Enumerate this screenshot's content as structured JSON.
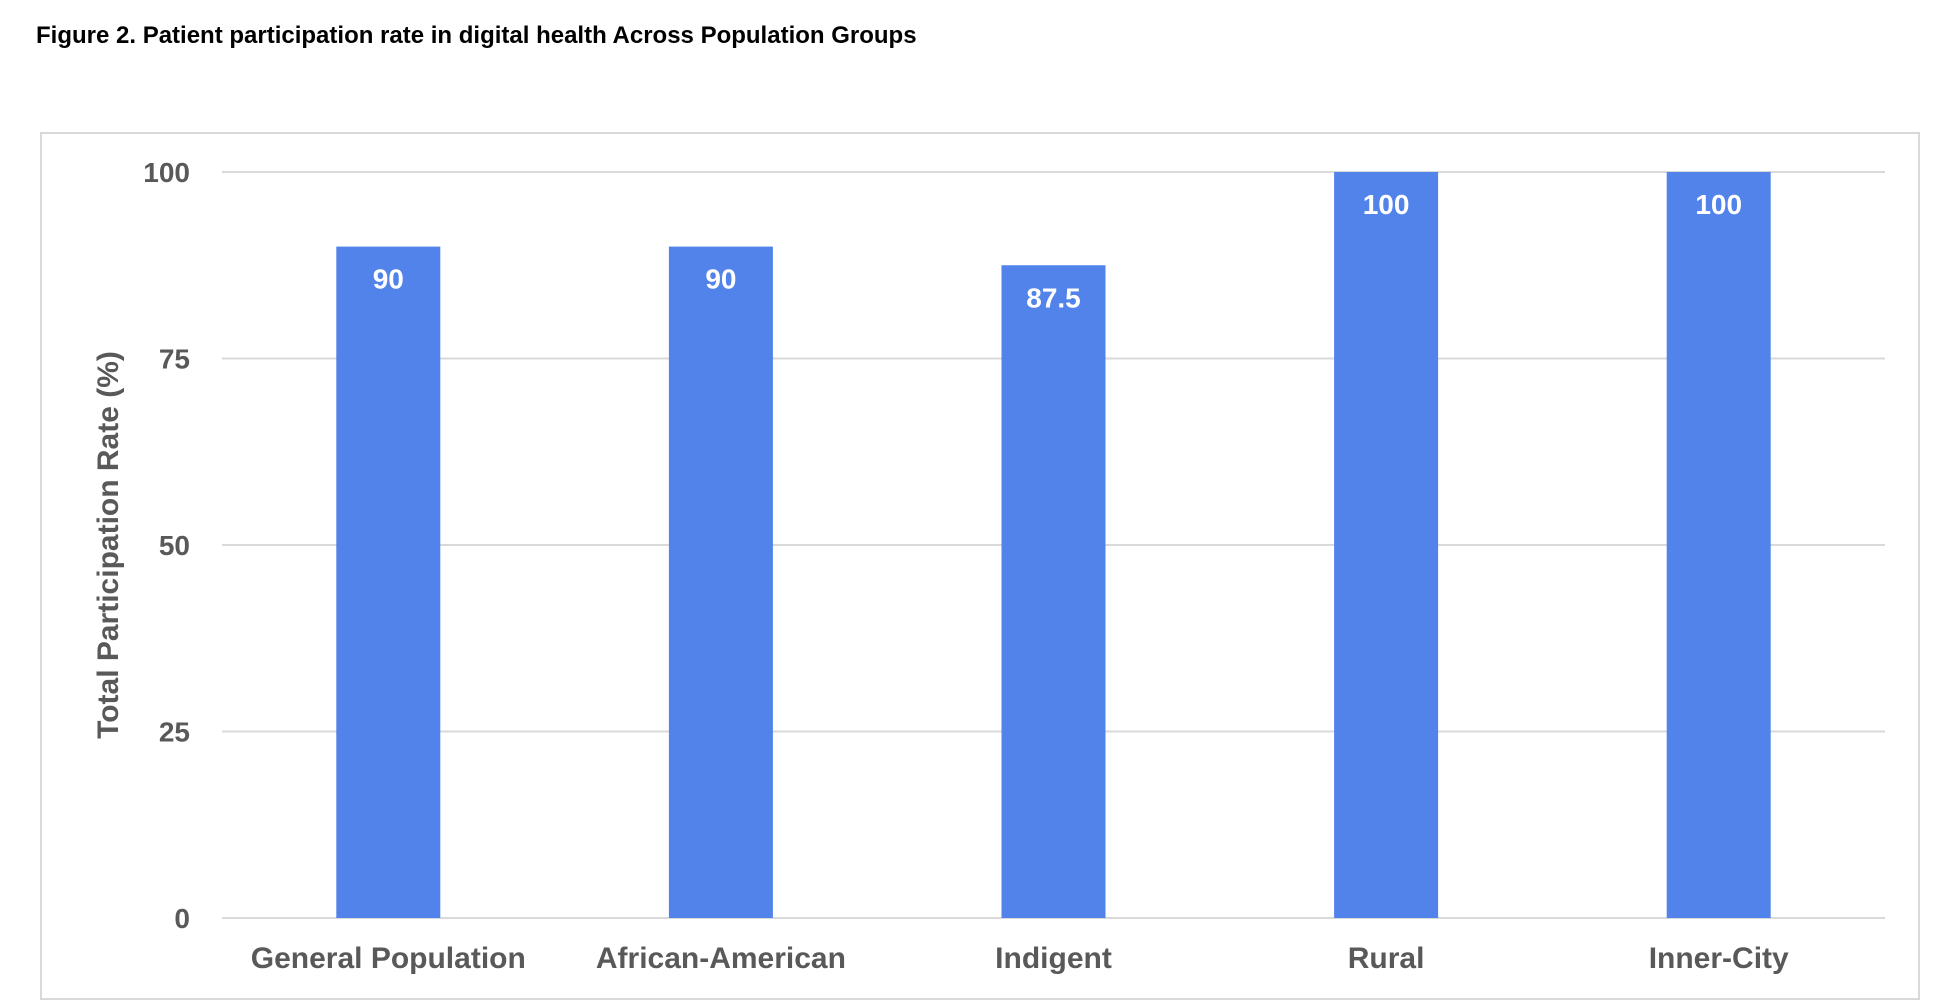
{
  "figure_title": "Figure 2. Patient participation rate in digital health Across Population Groups",
  "colors": {
    "bar": "#5183EB",
    "grid": "#D9D9D9",
    "axis_text": "#595959",
    "data_label": "#FFFFFF"
  },
  "chart_data": {
    "type": "bar",
    "title": "",
    "xlabel": "",
    "ylabel": "Total Participation Rate (%)",
    "categories": [
      "General Population",
      "African-American",
      "Indigent",
      "Rural",
      "Inner-City"
    ],
    "values": [
      90,
      90,
      87.5,
      100,
      100
    ],
    "data_labels": [
      "90",
      "90",
      "87.5",
      "100",
      "100"
    ],
    "ylim": [
      0,
      100
    ],
    "yticks": [
      0,
      25,
      50,
      75,
      100
    ],
    "ytick_labels": [
      "0",
      "25",
      "50",
      "75",
      "100"
    ],
    "grid": true,
    "legend": "none"
  }
}
